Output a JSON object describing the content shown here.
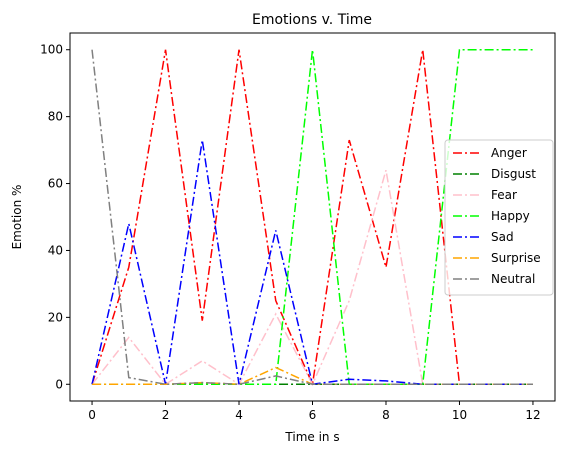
{
  "chart_data": {
    "type": "line",
    "title": "Emotions v. Time",
    "xlabel": "Time in s",
    "ylabel": "Emotion %",
    "xlim": [
      -0.6,
      12.6
    ],
    "ylim": [
      -5,
      105
    ],
    "xticks": [
      0,
      2,
      4,
      6,
      8,
      10,
      12
    ],
    "yticks": [
      0,
      20,
      40,
      60,
      80,
      100
    ],
    "grid": false,
    "legend_position": "center-right",
    "x": [
      0,
      1,
      2,
      3,
      4,
      5,
      6,
      7,
      8,
      9,
      10,
      11,
      12
    ],
    "series": [
      {
        "name": "Anger",
        "color": "#ff0000",
        "values": [
          0,
          35,
          100,
          19,
          100,
          25,
          0,
          73,
          35,
          100,
          0,
          0,
          0
        ]
      },
      {
        "name": "Disgust",
        "color": "#008000",
        "values": [
          0,
          0,
          0,
          0,
          0,
          0,
          0,
          0,
          0,
          0,
          0,
          0,
          0
        ]
      },
      {
        "name": "Fear",
        "color": "#ffc0cb",
        "values": [
          0,
          14,
          0,
          7,
          0,
          21,
          0,
          25,
          64,
          0,
          0,
          0,
          0
        ]
      },
      {
        "name": "Happy",
        "color": "#00ff00",
        "values": [
          0,
          0,
          0,
          0,
          0,
          0,
          100,
          0,
          0,
          0,
          100,
          100,
          100
        ]
      },
      {
        "name": "Sad",
        "color": "#0000ff",
        "values": [
          0,
          48,
          0,
          73,
          0,
          46,
          0,
          1.5,
          1,
          0,
          0,
          0,
          0
        ]
      },
      {
        "name": "Surprise",
        "color": "#ffa500",
        "values": [
          0,
          0,
          0,
          0.5,
          0,
          5,
          0,
          0,
          0,
          0,
          0,
          0,
          0
        ]
      },
      {
        "name": "Neutral",
        "color": "#808080",
        "values": [
          100,
          2,
          0,
          0.5,
          0,
          2.5,
          0,
          0,
          0,
          0,
          0,
          0,
          0
        ]
      }
    ]
  }
}
